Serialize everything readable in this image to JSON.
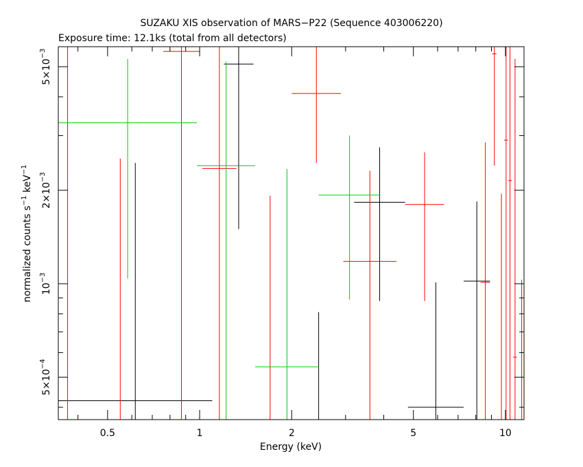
{
  "chart_data": {
    "type": "scatter",
    "title": "SUZAKU XIS observation of MARS−P22 (Sequence 403006220)",
    "subtitle": "Exposure time: 12.1ks (total from all detectors)",
    "xlabel": "Energy (keV)",
    "ylabel": {
      "text": "normalized counts s",
      "sup1": "−1",
      "mid": " keV",
      "sup2": "−1"
    },
    "x_scale": "log",
    "y_scale": "log",
    "xlim": [
      0.345,
      11.5
    ],
    "ylim": [
      0.000365,
      0.0058
    ],
    "x_ticks": [
      {
        "value": 0.5,
        "label": "0.5"
      },
      {
        "value": 1,
        "label": "1"
      },
      {
        "value": 2,
        "label": "2"
      },
      {
        "value": 5,
        "label": "5"
      },
      {
        "value": 10,
        "label": "10"
      }
    ],
    "y_ticks": [
      {
        "value": 0.0005,
        "mant": "5×10",
        "exp": "−4"
      },
      {
        "value": 0.001,
        "mant": "10",
        "exp": "−3"
      },
      {
        "value": 0.002,
        "mant": "2×10",
        "exp": "−3"
      },
      {
        "value": 0.005,
        "mant": "5×10",
        "exp": "−3"
      }
    ],
    "grid": false,
    "series": [
      {
        "color": "#000000",
        "points": [
          {
            "xlo": 0.345,
            "xhi": 1.1,
            "y": 0.00042,
            "ylo": 0.000365,
            "yhi": 0.00245
          },
          {
            "xlo": 1.2,
            "xhi": 1.5,
            "y": 0.0051,
            "ylo": 0.0015,
            "yhi": 0.0058
          },
          {
            "xlo": 2.45,
            "xhi": 2.45,
            "y": 0.00042,
            "ylo": 0.000365,
            "yhi": 0.00081
          },
          {
            "xlo": 3.2,
            "xhi": 4.7,
            "y": 0.00183,
            "ylo": 0.00088,
            "yhi": 0.00275
          },
          {
            "xlo": 4.8,
            "xhi": 7.3,
            "y": 0.0004,
            "ylo": 0.000365,
            "yhi": 0.00101
          },
          {
            "xlo": 7.3,
            "xhi": 8.9,
            "y": 0.00102,
            "ylo": 0.000365,
            "yhi": 0.00184
          }
        ]
      },
      {
        "color": "#ff0000",
        "points": [
          {
            "xlo": 0.37,
            "xhi": 0.37,
            "y": 0.0045,
            "ylo": 0.000365,
            "yhi": 0.0058
          },
          {
            "xlo": 0.55,
            "xhi": 0.55,
            "y": 0.0005,
            "ylo": 0.000365,
            "yhi": 0.00253
          },
          {
            "xlo": 0.76,
            "xhi": 1.0,
            "y": 0.0056,
            "ylo": 0.000365,
            "yhi": 0.0058
          },
          {
            "xlo": 1.02,
            "xhi": 1.32,
            "y": 0.00235,
            "ylo": 0.000365,
            "yhi": 0.0058
          },
          {
            "xlo": 1.7,
            "xhi": 1.7,
            "y": 0.0005,
            "ylo": 0.000365,
            "yhi": 0.00192
          },
          {
            "xlo": 2.0,
            "xhi": 2.9,
            "y": 0.0041,
            "ylo": 0.00245,
            "yhi": 0.0058
          },
          {
            "xlo": 2.95,
            "xhi": 4.4,
            "y": 0.00118,
            "ylo": 0.000365,
            "yhi": 0.00231
          },
          {
            "xlo": 4.7,
            "xhi": 6.3,
            "y": 0.0018,
            "ylo": 0.00088,
            "yhi": 0.00265
          },
          {
            "xlo": 8.3,
            "xhi": 8.9,
            "y": 0.00101,
            "ylo": 0.000365,
            "yhi": 0.00285
          },
          {
            "xlo": 9.05,
            "xhi": 9.35,
            "y": 0.0055,
            "ylo": 0.0024,
            "yhi": 0.0058
          },
          {
            "xlo": 9.7,
            "xhi": 9.7,
            "y": 0.0008,
            "ylo": 0.000365,
            "yhi": 0.00195
          },
          {
            "xlo": 9.9,
            "xhi": 10.2,
            "y": 0.0029,
            "ylo": 0.000365,
            "yhi": 0.0058
          },
          {
            "xlo": 10.2,
            "xhi": 10.5,
            "y": 0.00215,
            "ylo": 0.000365,
            "yhi": 0.0058
          },
          {
            "xlo": 10.6,
            "xhi": 10.9,
            "y": 0.00058,
            "ylo": 0.000365,
            "yhi": 0.0053
          },
          {
            "xlo": 11.3,
            "xhi": 11.3,
            "y": 0.0008,
            "ylo": 0.000365,
            "yhi": 0.00103
          }
        ]
      },
      {
        "color": "#00cc00",
        "points": [
          {
            "xlo": 0.345,
            "xhi": 0.98,
            "y": 0.0033,
            "ylo": 0.00104,
            "yhi": 0.0053
          },
          {
            "xlo": 0.98,
            "xhi": 1.52,
            "y": 0.0024,
            "ylo": 0.000365,
            "yhi": 0.0052
          },
          {
            "xlo": 1.52,
            "xhi": 2.45,
            "y": 0.00054,
            "ylo": 0.000365,
            "yhi": 0.00234
          },
          {
            "xlo": 2.45,
            "xhi": 3.9,
            "y": 0.00193,
            "ylo": 0.00089,
            "yhi": 0.003
          }
        ]
      }
    ]
  }
}
